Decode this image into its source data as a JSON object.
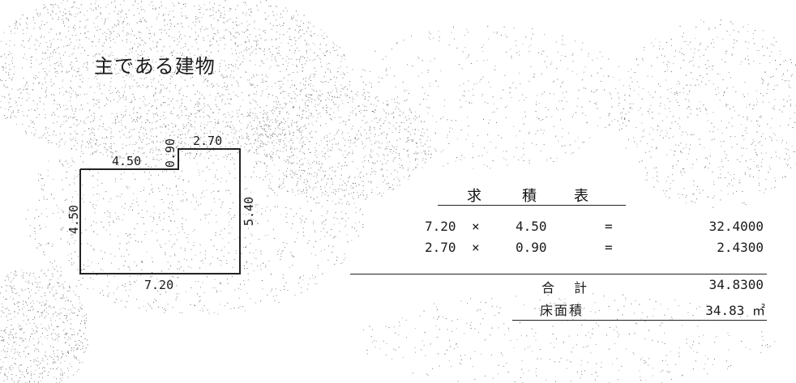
{
  "title": "主である建物",
  "plan": {
    "dim_top_left": "4.50",
    "dim_notch_height": "0.90",
    "dim_top_right": "2.70",
    "dim_left": "4.50",
    "dim_right": "5.40",
    "dim_bottom": "7.20"
  },
  "table": {
    "heading": [
      "求",
      "積",
      "表"
    ],
    "rows": [
      {
        "a": "7.20",
        "op": "×",
        "b": "4.50",
        "eq": "=",
        "result": "32.4000"
      },
      {
        "a": "2.70",
        "op": "×",
        "b": "0.90",
        "eq": "=",
        "result": "2.4300"
      }
    ],
    "total_label": "合　計",
    "total_value": "34.8300",
    "floor_area_label": "床面積",
    "floor_area_value": "34.83 ㎡"
  }
}
